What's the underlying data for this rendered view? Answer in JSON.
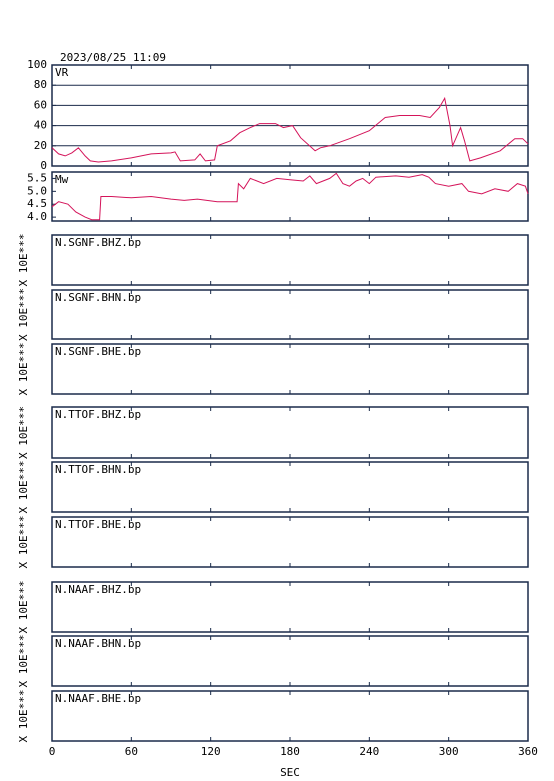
{
  "title": "2023/08/25 11:09",
  "chart_data": [
    {
      "type": "line",
      "label": "VR",
      "color": "#d4145a",
      "grid": true,
      "xlim": [
        0,
        360
      ],
      "xticks": [
        0,
        60,
        120,
        180,
        240,
        300,
        360
      ],
      "ylim": [
        0,
        100
      ],
      "yticks": [
        0,
        20,
        40,
        60,
        80,
        100
      ],
      "x": [
        0,
        5,
        10,
        15,
        20,
        25,
        29,
        35,
        45,
        60,
        75,
        90,
        93,
        97,
        108,
        112,
        116,
        123,
        125,
        135,
        142,
        150,
        157,
        169,
        175,
        182,
        188,
        199,
        203,
        210,
        225,
        240,
        252,
        263,
        278,
        286,
        293,
        297,
        301,
        303,
        309,
        312,
        316,
        324,
        339,
        350,
        356,
        360
      ],
      "values": [
        18,
        12,
        10,
        13,
        18,
        10,
        5,
        4,
        5,
        8,
        12,
        13,
        14,
        5,
        6,
        12,
        5,
        6,
        20,
        25,
        33,
        38,
        42,
        42,
        38,
        40,
        28,
        15,
        18,
        20,
        27,
        35,
        48,
        50,
        50,
        48,
        58,
        67,
        40,
        20,
        38,
        25,
        5,
        8,
        15,
        27,
        27,
        22
      ]
    },
    {
      "type": "line",
      "label": "Mw",
      "color": "#d4145a",
      "grid": false,
      "xlim": [
        0,
        360
      ],
      "xticks": [
        0,
        60,
        120,
        180,
        240,
        300,
        360
      ],
      "ylim": [
        3.85,
        5.75
      ],
      "yticks": [
        {
          "value": 4,
          "label": "4.0"
        },
        4.5,
        {
          "value": 5,
          "label": "5.0"
        },
        5.5
      ],
      "x": [
        0,
        5,
        12,
        18,
        25,
        30,
        36,
        37,
        45,
        60,
        75,
        90,
        100,
        110,
        125,
        135,
        140,
        141,
        145,
        150,
        160,
        170,
        180,
        190,
        195,
        200,
        210,
        215,
        220,
        225,
        230,
        235,
        240,
        245,
        260,
        270,
        280,
        285,
        290,
        300,
        310,
        315,
        325,
        335,
        345,
        352,
        358,
        360
      ],
      "values": [
        4.4,
        4.6,
        4.5,
        4.2,
        4.0,
        3.9,
        3.9,
        4.8,
        4.8,
        4.75,
        4.8,
        4.7,
        4.65,
        4.7,
        4.6,
        4.6,
        4.6,
        5.3,
        5.1,
        5.5,
        5.3,
        5.5,
        5.45,
        5.4,
        5.6,
        5.3,
        5.5,
        5.7,
        5.3,
        5.2,
        5.4,
        5.5,
        5.3,
        5.55,
        5.6,
        5.55,
        5.65,
        5.55,
        5.3,
        5.2,
        5.3,
        5.0,
        4.9,
        5.1,
        5.0,
        5.3,
        5.2,
        4.9
      ]
    },
    {
      "type": "waveform",
      "label": "N.SGNF.BHZ.bp",
      "y_label": "X 10E***",
      "xlim": [
        0,
        360
      ],
      "xticks": [
        0,
        60,
        120,
        180,
        240,
        300,
        360
      ]
    },
    {
      "type": "waveform",
      "label": "N.SGNF.BHN.bp",
      "y_label": "X 10E***",
      "xlim": [
        0,
        360
      ],
      "xticks": [
        0,
        60,
        120,
        180,
        240,
        300,
        360
      ]
    },
    {
      "type": "waveform",
      "label": "N.SGNF.BHE.bp",
      "y_label": "X 10E***",
      "xlim": [
        0,
        360
      ],
      "xticks": [
        0,
        60,
        120,
        180,
        240,
        300,
        360
      ]
    },
    {
      "type": "waveform",
      "label": "N.TTOF.BHZ.bp",
      "y_label": "X 10E***",
      "xlim": [
        0,
        360
      ],
      "xticks": [
        0,
        60,
        120,
        180,
        240,
        300,
        360
      ]
    },
    {
      "type": "waveform",
      "label": "N.TTOF.BHN.bp",
      "y_label": "X 10E***",
      "xlim": [
        0,
        360
      ],
      "xticks": [
        0,
        60,
        120,
        180,
        240,
        300,
        360
      ]
    },
    {
      "type": "waveform",
      "label": "N.TTOF.BHE.bp",
      "y_label": "X 10E***",
      "xlim": [
        0,
        360
      ],
      "xticks": [
        0,
        60,
        120,
        180,
        240,
        300,
        360
      ]
    },
    {
      "type": "waveform",
      "label": "N.NAAF.BHZ.bp",
      "y_label": "X 10E***",
      "xlim": [
        0,
        360
      ],
      "xticks": [
        0,
        60,
        120,
        180,
        240,
        300,
        360
      ]
    },
    {
      "type": "waveform",
      "label": "N.NAAF.BHN.bp",
      "y_label": "X 10E***",
      "xlim": [
        0,
        360
      ],
      "xticks": [
        0,
        60,
        120,
        180,
        240,
        300,
        360
      ]
    },
    {
      "type": "waveform",
      "label": "N.NAAF.BHE.bp",
      "y_label": "X 10E***",
      "x_label": "SEC",
      "xlim": [
        0,
        360
      ],
      "xticks": [
        0,
        60,
        120,
        180,
        240,
        300,
        360
      ]
    }
  ]
}
